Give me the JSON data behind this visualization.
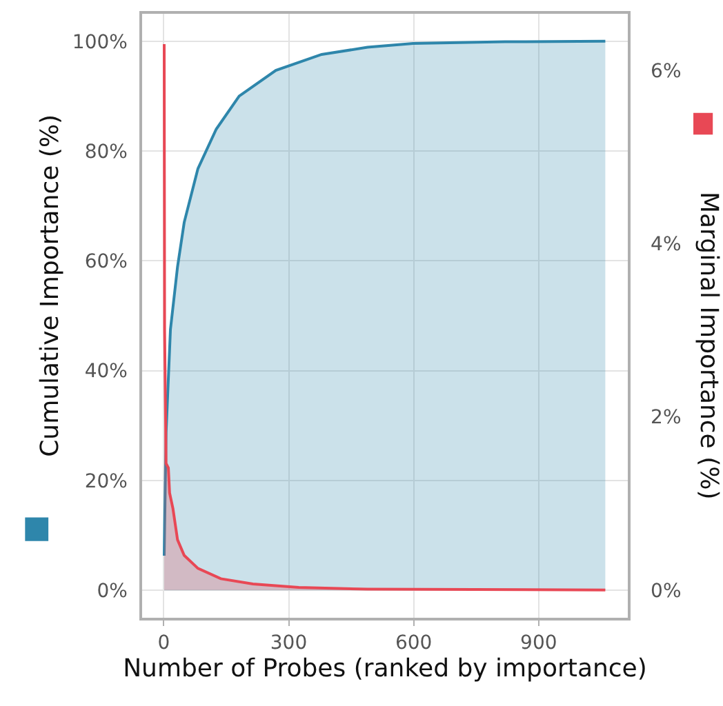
{
  "chart_data": {
    "type": "area",
    "xlabel": "Number of Probes (ranked by importance)",
    "ylabel": "Cumulative Importance (%)",
    "y2label": "Marginal Importance (%)",
    "series": [
      {
        "color": "#2e86ab",
        "x": [
          1,
          5.5,
          16,
          33,
          49,
          82,
          126,
          181,
          269,
          379,
          489,
          599,
          819,
          1060
        ],
        "values": [
          6.3,
          28.7,
          47.5,
          58.9,
          67,
          76.8,
          84,
          90,
          94.7,
          97.6,
          98.9,
          99.6,
          99.9,
          100
        ]
      },
      {
        "color": "#e84855",
        "axis": "y2",
        "x": [
          1,
          2,
          5.5,
          11,
          14,
          22,
          33,
          49,
          82,
          137,
          214,
          324,
          489,
          1060
        ],
        "values": [
          6.3,
          3.0,
          1.46,
          1.41,
          1.12,
          0.94,
          0.58,
          0.4,
          0.25,
          0.13,
          0.07,
          0.03,
          0.01,
          0
        ]
      }
    ],
    "xlim": [
      -52,
      1114
    ],
    "xticks": [
      0,
      300,
      600,
      900
    ],
    "ylim": [
      -5,
      105
    ],
    "yticks": [
      {
        "value": 0,
        "label": "0%"
      },
      {
        "value": 20,
        "label": "20%"
      },
      {
        "value": 40,
        "label": "40%"
      },
      {
        "value": 60,
        "label": "60%"
      },
      {
        "value": 80,
        "label": "80%"
      },
      {
        "value": 100,
        "label": "100%"
      }
    ],
    "y2lim": [
      -0.32,
      6.65
    ],
    "y2ticks": [
      {
        "value": 0,
        "label": "0%"
      },
      {
        "value": 2,
        "label": "2%"
      },
      {
        "value": 4,
        "label": "4%"
      },
      {
        "value": 6,
        "label": "6%"
      }
    ],
    "grid": true
  }
}
